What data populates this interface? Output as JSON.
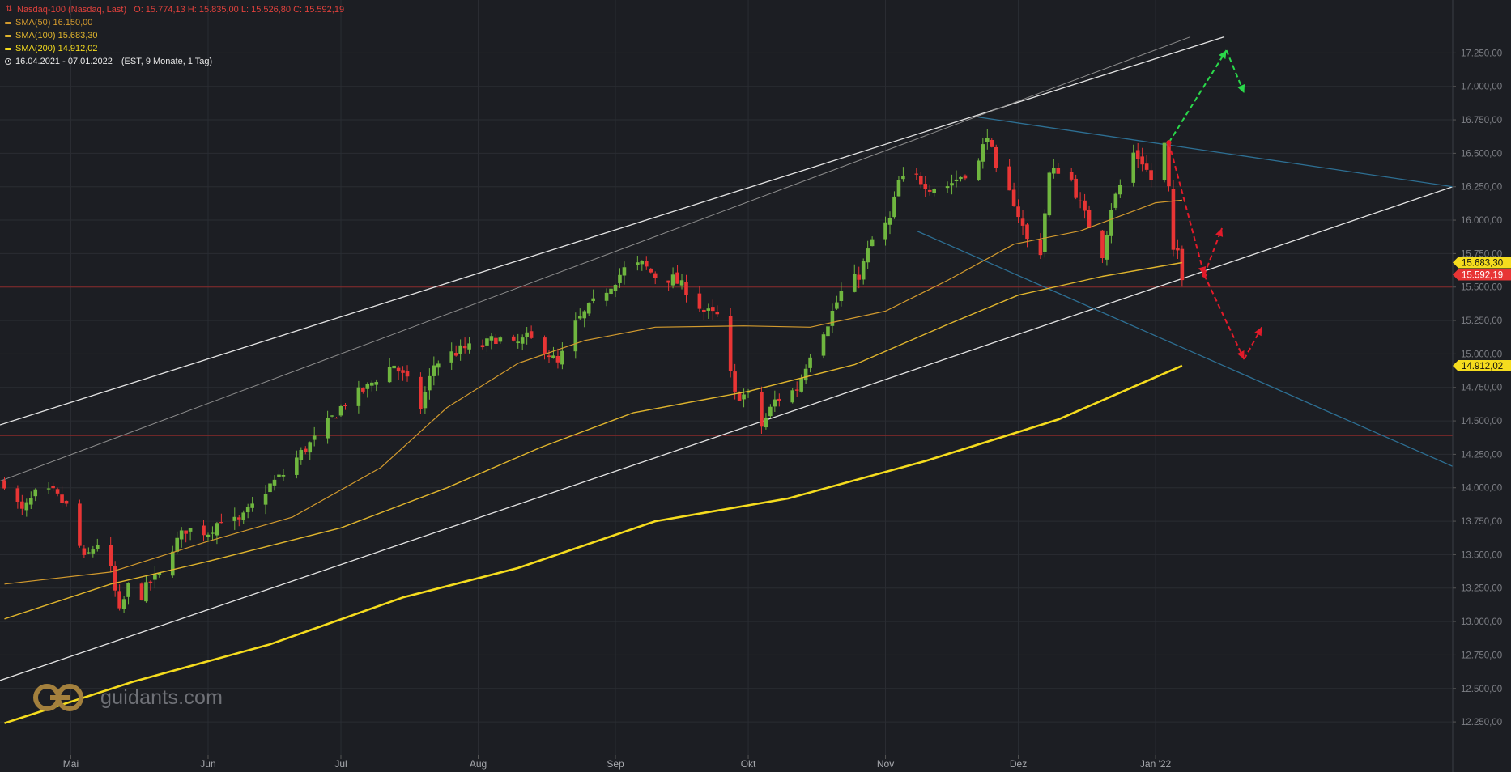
{
  "legend": {
    "title": "Nasdaq-100 (Nasdaq, Last)",
    "ohlc": "O: 15.774,13  H: 15.835,00  L: 15.526,80  C: 15.592,19",
    "sma50": "SMA(50)  16.150,00",
    "sma100": "SMA(100)  15.683,30",
    "sma200": "SMA(200)  14.912,02",
    "range": "16.04.2021 - 07.01.2022",
    "range_extra": "(EST, 9 Monate, 1 Tag)"
  },
  "watermark": {
    "text": "guidants.com"
  },
  "colors": {
    "background": "#1c1e23",
    "grid": "#2a2d33",
    "up": "#6fb63f",
    "down": "#e83535",
    "sma50": "#d29a2e",
    "sma100": "#e0b52d",
    "sma200": "#f5dc1e",
    "trend_white": "#e4e4e4",
    "trend_blue": "#2d6f93",
    "hline": "#8a2a2a",
    "arrow_green": "#2ad84a",
    "arrow_red": "#e21b2a"
  },
  "chart_data": {
    "type": "candlestick",
    "y_axis_labels": [
      "17.250,00",
      "17.000,00",
      "16.750,00",
      "16.500,00",
      "16.250,00",
      "16.000,00",
      "15.750,00",
      "15.500,00",
      "15.250,00",
      "15.000,00",
      "14.750,00",
      "14.500,00",
      "14.250,00",
      "14.000,00",
      "13.750,00",
      "13.500,00",
      "13.250,00",
      "13.000,00",
      "12.750,00",
      "12.500,00",
      "12.250,00"
    ],
    "y_values": [
      17250,
      17000,
      16750,
      16500,
      16250,
      16000,
      15750,
      15500,
      15250,
      15000,
      14750,
      14500,
      14250,
      14000,
      13750,
      13500,
      13250,
      13000,
      12750,
      12500,
      12250
    ],
    "x_labels": [
      "Mai",
      "Jun",
      "Jul",
      "Aug",
      "Sep",
      "Okt",
      "Nov",
      "Dez",
      "Jan '22"
    ],
    "x_label_dates": [
      "2021-05-01",
      "2021-06-01",
      "2021-07-01",
      "2021-08-01",
      "2021-09-01",
      "2021-10-01",
      "2021-11-01",
      "2021-12-01",
      "2022-01-01"
    ],
    "x_start": "2021-04-16",
    "x_end": "2022-01-07",
    "price_tags": [
      {
        "label": "15.683,30",
        "value": 15683.3,
        "kind": "sma100"
      },
      {
        "label": "15.592,19",
        "value": 15592.19,
        "kind": "last"
      },
      {
        "label": "14.912,02",
        "value": 14912.02,
        "kind": "sma200"
      }
    ],
    "horizontal_lines": [
      15500,
      14390
    ],
    "close_path": [
      [
        "2021-04-16",
        14040
      ],
      [
        "2021-04-20",
        13820
      ],
      [
        "2021-04-23",
        13950
      ],
      [
        "2021-04-27",
        13960
      ],
      [
        "2021-04-30",
        13860
      ],
      [
        "2021-05-04",
        13460
      ],
      [
        "2021-05-07",
        13590
      ],
      [
        "2021-05-10",
        13380
      ],
      [
        "2021-05-12",
        13060
      ],
      [
        "2021-05-14",
        13260
      ],
      [
        "2021-05-17",
        13200
      ],
      [
        "2021-05-19",
        13300
      ],
      [
        "2021-05-21",
        13340
      ],
      [
        "2021-05-24",
        13560
      ],
      [
        "2021-05-27",
        13690
      ],
      [
        "2021-06-01",
        13670
      ],
      [
        "2021-06-04",
        13770
      ],
      [
        "2021-06-08",
        13740
      ],
      [
        "2021-06-11",
        13860
      ],
      [
        "2021-06-15",
        14020
      ],
      [
        "2021-06-18",
        14100
      ],
      [
        "2021-06-22",
        14260
      ],
      [
        "2021-06-25",
        14360
      ],
      [
        "2021-06-30",
        14560
      ],
      [
        "2021-07-02",
        14640
      ],
      [
        "2021-07-07",
        14750
      ],
      [
        "2021-07-09",
        14820
      ],
      [
        "2021-07-13",
        14920
      ],
      [
        "2021-07-16",
        14790
      ],
      [
        "2021-07-19",
        14600
      ],
      [
        "2021-07-22",
        14920
      ],
      [
        "2021-07-26",
        15000
      ],
      [
        "2021-07-29",
        15040
      ],
      [
        "2021-08-02",
        15060
      ],
      [
        "2021-08-05",
        15120
      ],
      [
        "2021-08-09",
        15060
      ],
      [
        "2021-08-12",
        15120
      ],
      [
        "2021-08-16",
        15040
      ],
      [
        "2021-08-19",
        14920
      ],
      [
        "2021-08-23",
        15220
      ],
      [
        "2021-08-26",
        15340
      ],
      [
        "2021-08-31",
        15520
      ],
      [
        "2021-09-03",
        15630
      ],
      [
        "2021-09-07",
        15670
      ],
      [
        "2021-09-10",
        15580
      ],
      [
        "2021-09-14",
        15560
      ],
      [
        "2021-09-17",
        15480
      ],
      [
        "2021-09-21",
        15320
      ],
      [
        "2021-09-24",
        15280
      ],
      [
        "2021-09-28",
        14690
      ],
      [
        "2021-10-01",
        14690
      ],
      [
        "2021-10-04",
        14460
      ],
      [
        "2021-10-07",
        14650
      ],
      [
        "2021-10-12",
        14740
      ],
      [
        "2021-10-15",
        15010
      ],
      [
        "2021-10-19",
        15240
      ],
      [
        "2021-10-22",
        15460
      ],
      [
        "2021-10-26",
        15590
      ],
      [
        "2021-10-29",
        15850
      ],
      [
        "2021-11-02",
        16000
      ],
      [
        "2021-11-04",
        16290
      ],
      [
        "2021-11-08",
        16320
      ],
      [
        "2021-11-11",
        16250
      ],
      [
        "2021-11-15",
        16260
      ],
      [
        "2021-11-18",
        16330
      ],
      [
        "2021-11-22",
        16430
      ],
      [
        "2021-11-24",
        16660
      ],
      [
        "2021-11-26",
        16350
      ],
      [
        "2021-11-30",
        16140
      ],
      [
        "2021-12-03",
        15850
      ],
      [
        "2021-12-06",
        15770
      ],
      [
        "2021-12-08",
        16340
      ],
      [
        "2021-12-10",
        16380
      ],
      [
        "2021-12-13",
        16300
      ],
      [
        "2021-12-15",
        16110
      ],
      [
        "2021-12-17",
        15960
      ],
      [
        "2021-12-20",
        15750
      ],
      [
        "2021-12-22",
        16100
      ],
      [
        "2021-12-27",
        16500
      ],
      [
        "2021-12-29",
        16440
      ],
      [
        "2021-12-31",
        16300
      ],
      [
        "2022-01-03",
        16560
      ],
      [
        "2022-01-04",
        16230
      ],
      [
        "2022-01-05",
        15740
      ],
      [
        "2022-01-06",
        15770
      ],
      [
        "2022-01-07",
        15592
      ]
    ],
    "series": [
      {
        "name": "SMA(50)",
        "values": [
          [
            "2021-04-16",
            13280
          ],
          [
            "2021-05-10",
            13370
          ],
          [
            "2021-06-01",
            13600
          ],
          [
            "2021-06-20",
            13780
          ],
          [
            "2021-07-10",
            14150
          ],
          [
            "2021-07-25",
            14600
          ],
          [
            "2021-08-10",
            14930
          ],
          [
            "2021-08-25",
            15100
          ],
          [
            "2021-09-10",
            15200
          ],
          [
            "2021-09-30",
            15210
          ],
          [
            "2021-10-15",
            15200
          ],
          [
            "2021-11-01",
            15320
          ],
          [
            "2021-11-15",
            15550
          ],
          [
            "2021-11-30",
            15820
          ],
          [
            "2021-12-15",
            15920
          ],
          [
            "2022-01-01",
            16130
          ],
          [
            "2022-01-07",
            16150
          ]
        ]
      },
      {
        "name": "SMA(100)",
        "values": [
          [
            "2021-04-16",
            13020
          ],
          [
            "2021-05-10",
            13280
          ],
          [
            "2021-06-01",
            13450
          ],
          [
            "2021-07-01",
            13700
          ],
          [
            "2021-07-25",
            14000
          ],
          [
            "2021-08-15",
            14300
          ],
          [
            "2021-09-05",
            14560
          ],
          [
            "2021-10-01",
            14720
          ],
          [
            "2021-10-25",
            14920
          ],
          [
            "2021-11-15",
            15220
          ],
          [
            "2021-12-01",
            15440
          ],
          [
            "2021-12-20",
            15580
          ],
          [
            "2022-01-07",
            15683
          ]
        ]
      },
      {
        "name": "SMA(200)",
        "values": [
          [
            "2021-04-16",
            12240
          ],
          [
            "2021-05-15",
            12550
          ],
          [
            "2021-06-15",
            12830
          ],
          [
            "2021-07-15",
            13180
          ],
          [
            "2021-08-10",
            13400
          ],
          [
            "2021-09-10",
            13750
          ],
          [
            "2021-10-10",
            13920
          ],
          [
            "2021-11-10",
            14200
          ],
          [
            "2021-12-10",
            14510
          ],
          [
            "2022-01-07",
            14912
          ]
        ]
      }
    ],
    "annotations": [
      {
        "kind": "arrow",
        "color": "green",
        "style": "dashed",
        "points": [
          [
            "2022-01-04",
            16580
          ],
          [
            "2022-01-17",
            17270
          ],
          [
            "2022-01-21",
            16950
          ]
        ]
      },
      {
        "kind": "arrow",
        "color": "red",
        "style": "dashed",
        "points": [
          [
            "2022-01-04",
            16580
          ],
          [
            "2022-01-12",
            15590
          ],
          [
            "2022-01-16",
            15940
          ]
        ]
      },
      {
        "kind": "arrow",
        "color": "red",
        "style": "dashed",
        "points": [
          [
            "2022-01-12",
            15590
          ],
          [
            "2022-01-21",
            14960
          ],
          [
            "2022-01-25",
            15200
          ]
        ]
      }
    ],
    "grid": true,
    "legend_position": "top-left"
  }
}
